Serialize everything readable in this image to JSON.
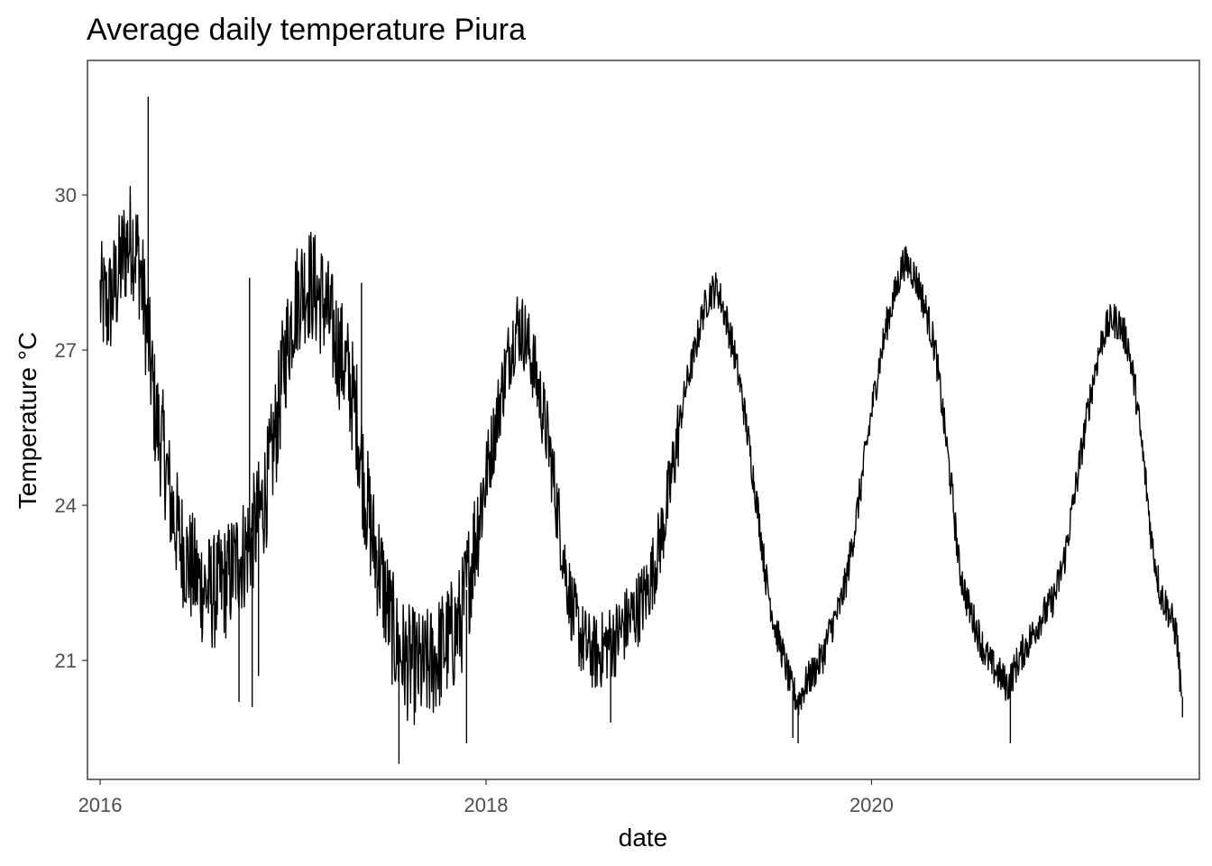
{
  "chart_data": {
    "type": "line",
    "title": "Average daily temperature Piura",
    "xlabel": "date",
    "ylabel": "Temperature °C",
    "x_ticks": [
      "2016",
      "2018",
      "2020"
    ],
    "y_ticks": [
      21,
      24,
      27,
      30
    ],
    "xlim": [
      "2015-12-08",
      "2021-09-13"
    ],
    "ylim": [
      18.7,
      32.6
    ],
    "grid": false,
    "legend": "none",
    "line_color": "#000000",
    "series": [
      {
        "x": [
          "2016-01-01",
          "2016-01-15",
          "2016-02-01",
          "2016-02-15",
          "2016-03-01",
          "2016-03-15",
          "2016-04-01",
          "2016-04-15",
          "2016-05-01",
          "2016-05-15",
          "2016-06-01",
          "2016-06-15",
          "2016-07-01",
          "2016-07-15",
          "2016-08-01",
          "2016-08-15",
          "2016-09-01",
          "2016-09-15",
          "2016-10-01",
          "2016-10-15",
          "2016-11-01",
          "2016-11-15",
          "2016-12-01",
          "2016-12-15",
          "2017-01-01",
          "2017-01-15",
          "2017-02-01",
          "2017-02-15",
          "2017-03-01",
          "2017-03-15",
          "2017-04-01",
          "2017-04-15",
          "2017-05-01",
          "2017-05-15",
          "2017-06-01",
          "2017-06-15",
          "2017-07-01",
          "2017-07-15",
          "2017-08-01",
          "2017-08-15",
          "2017-09-01",
          "2017-09-15",
          "2017-10-01",
          "2017-10-15",
          "2017-11-01",
          "2017-11-15",
          "2017-12-01",
          "2017-12-15",
          "2018-01-01",
          "2018-01-15",
          "2018-02-01",
          "2018-02-15",
          "2018-03-01",
          "2018-03-15",
          "2018-04-01",
          "2018-04-15",
          "2018-05-01",
          "2018-05-15",
          "2018-06-01",
          "2018-06-15",
          "2018-07-01",
          "2018-07-15",
          "2018-08-01",
          "2018-08-15",
          "2018-09-01",
          "2018-09-15",
          "2018-10-01",
          "2018-10-15",
          "2018-11-01",
          "2018-11-15",
          "2018-12-01",
          "2018-12-15",
          "2019-01-01",
          "2019-01-15",
          "2019-02-01",
          "2019-02-15",
          "2019-03-01",
          "2019-03-15",
          "2019-04-01",
          "2019-04-15",
          "2019-05-01",
          "2019-05-15",
          "2019-06-01",
          "2019-06-15",
          "2019-07-01",
          "2019-07-15",
          "2019-08-01",
          "2019-08-15",
          "2019-09-01",
          "2019-09-15",
          "2019-10-01",
          "2019-10-15",
          "2019-11-01",
          "2019-11-15",
          "2019-12-01",
          "2019-12-15",
          "2020-01-01",
          "2020-01-15",
          "2020-02-01",
          "2020-02-15",
          "2020-03-01",
          "2020-03-15",
          "2020-04-01",
          "2020-04-15",
          "2020-05-01",
          "2020-05-15",
          "2020-06-01",
          "2020-06-15",
          "2020-07-01",
          "2020-07-15",
          "2020-08-01",
          "2020-08-15",
          "2020-09-01",
          "2020-09-15",
          "2020-10-01",
          "2020-10-15",
          "2020-11-01",
          "2020-11-15",
          "2020-12-01",
          "2020-12-15",
          "2021-01-01",
          "2021-01-15",
          "2021-02-01",
          "2021-02-15",
          "2021-03-01",
          "2021-03-15",
          "2021-04-01",
          "2021-04-15",
          "2021-05-01",
          "2021-05-15",
          "2021-06-01",
          "2021-06-15",
          "2021-07-01",
          "2021-07-15",
          "2021-08-01",
          "2021-08-10"
        ],
        "values": [
          28.0,
          27.8,
          28.3,
          28.9,
          29.2,
          28.7,
          27.2,
          25.7,
          25.0,
          24.0,
          23.3,
          22.9,
          22.6,
          22.4,
          22.3,
          22.4,
          22.6,
          22.9,
          23.1,
          23.4,
          23.9,
          24.5,
          25.6,
          26.8,
          27.8,
          28.2,
          28.3,
          28.1,
          27.9,
          27.4,
          26.9,
          26.5,
          25.7,
          24.4,
          23.3,
          22.7,
          21.9,
          21.3,
          21.0,
          20.9,
          20.8,
          20.9,
          21.1,
          21.3,
          21.5,
          21.8,
          22.7,
          23.6,
          24.6,
          25.3,
          26.3,
          27.0,
          27.5,
          27.3,
          26.7,
          26.0,
          25.1,
          24.0,
          22.7,
          21.9,
          21.4,
          21.2,
          21.1,
          21.3,
          21.4,
          21.6,
          21.8,
          22.0,
          22.3,
          22.8,
          23.5,
          24.3,
          25.5,
          26.3,
          27.0,
          27.7,
          28.1,
          28.2,
          27.6,
          27.0,
          26.1,
          25.1,
          23.8,
          22.6,
          21.7,
          21.2,
          20.5,
          20.2,
          20.6,
          20.8,
          21.1,
          21.6,
          22.0,
          22.6,
          23.6,
          24.6,
          25.8,
          26.7,
          27.6,
          28.1,
          28.7,
          28.6,
          28.2,
          27.7,
          27.0,
          25.8,
          24.3,
          22.8,
          22.1,
          21.7,
          21.2,
          20.9,
          20.7,
          20.5,
          20.9,
          21.2,
          21.5,
          21.8,
          22.0,
          22.3,
          23.0,
          23.9,
          25.0,
          25.9,
          26.7,
          27.3,
          27.6,
          27.5,
          27.1,
          26.2,
          24.7,
          23.3,
          22.3,
          22.0,
          21.5,
          20.3
        ]
      }
    ],
    "spikes": [
      {
        "x": "2016-04-01",
        "value": 31.9
      },
      {
        "x": "2016-09-20",
        "value": 20.2
      },
      {
        "x": "2016-10-10",
        "value": 28.4
      },
      {
        "x": "2016-10-15",
        "value": 20.1
      },
      {
        "x": "2016-10-27",
        "value": 20.7
      },
      {
        "x": "2017-05-10",
        "value": 28.3
      },
      {
        "x": "2017-07-20",
        "value": 19.0
      },
      {
        "x": "2017-11-25",
        "value": 19.4
      },
      {
        "x": "2018-08-25",
        "value": 19.8
      },
      {
        "x": "2019-08-05",
        "value": 19.5
      },
      {
        "x": "2019-08-15",
        "value": 19.4
      },
      {
        "x": "2020-09-20",
        "value": 19.4
      },
      {
        "x": "2021-08-12",
        "value": 19.9
      }
    ]
  }
}
